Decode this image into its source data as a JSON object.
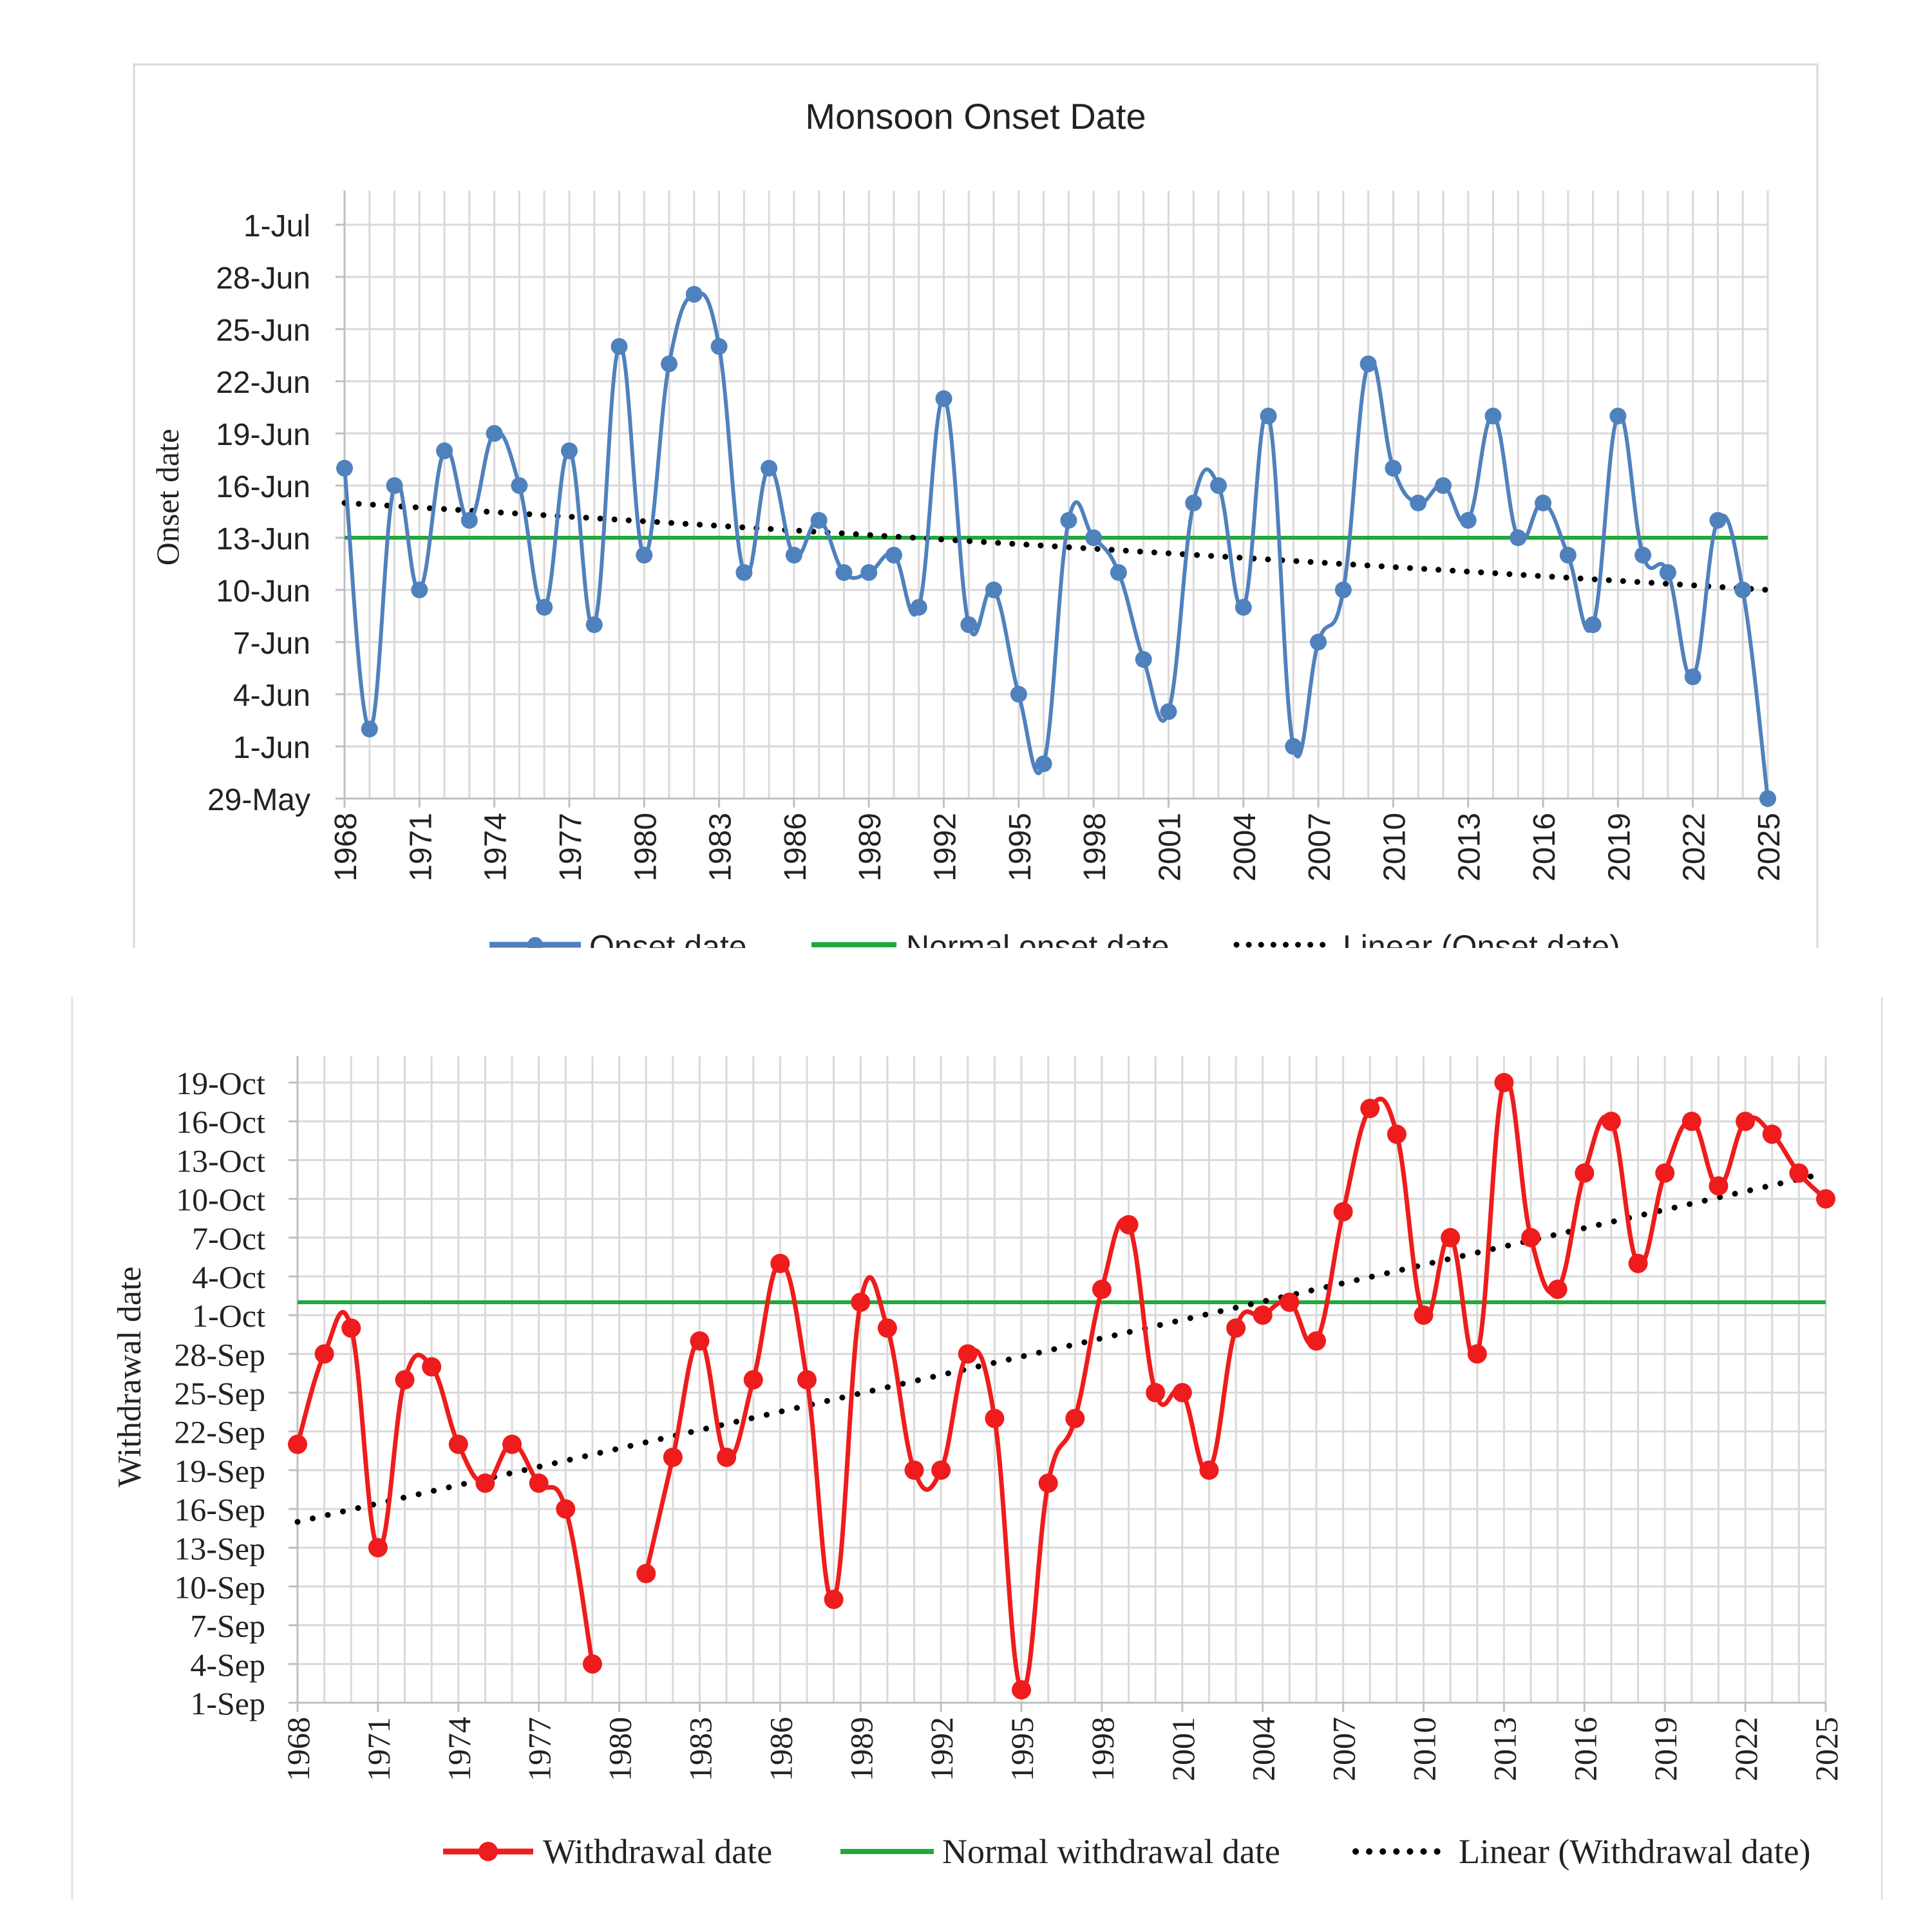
{
  "chart_data": [
    {
      "type": "line",
      "title": "Monsoon Onset Date",
      "xlabel": "",
      "ylabel": "Onset date",
      "x_ticks": [
        "1968",
        "1971",
        "1974",
        "1977",
        "1980",
        "1983",
        "1986",
        "1989",
        "1992",
        "1995",
        "1998",
        "2001",
        "2004",
        "2007",
        "2010",
        "2013",
        "2016",
        "2019",
        "2022",
        "2025"
      ],
      "y_ticks": [
        "29-May",
        "1-Jun",
        "4-Jun",
        "7-Jun",
        "10-Jun",
        "13-Jun",
        "16-Jun",
        "19-Jun",
        "22-Jun",
        "25-Jun",
        "28-Jun",
        "1-Jul"
      ],
      "xlim": [
        1968,
        2025
      ],
      "ylim": [
        "2025-05-29",
        "2025-07-01"
      ],
      "legend_position": "bottom",
      "grid": true,
      "colors": {
        "series": "#4f81bd",
        "normal": "#22a83a",
        "trend": "#000000"
      },
      "series": [
        {
          "name": "Onset date",
          "x": [
            1968,
            1969,
            1970,
            1971,
            1972,
            1973,
            1974,
            1975,
            1976,
            1977,
            1978,
            1979,
            1980,
            1981,
            1982,
            1983,
            1984,
            1985,
            1986,
            1987,
            1988,
            1989,
            1990,
            1991,
            1992,
            1993,
            1994,
            1995,
            1996,
            1997,
            1998,
            1999,
            2000,
            2001,
            2002,
            2003,
            2004,
            2005,
            2006,
            2007,
            2008,
            2009,
            2010,
            2011,
            2012,
            2013,
            2014,
            2015,
            2016,
            2017,
            2018,
            2019,
            2020,
            2021,
            2022,
            2023,
            2024,
            2025
          ],
          "y": [
            "2025-06-17",
            "2025-06-02",
            "2025-06-16",
            "2025-06-10",
            "2025-06-18",
            "2025-06-14",
            "2025-06-19",
            "2025-06-16",
            "2025-06-09",
            "2025-06-18",
            "2025-06-08",
            "2025-06-24",
            "2025-06-12",
            "2025-06-23",
            "2025-06-27",
            "2025-06-24",
            "2025-06-11",
            "2025-06-17",
            "2025-06-12",
            "2025-06-14",
            "2025-06-11",
            "2025-06-11",
            "2025-06-12",
            "2025-06-09",
            "2025-06-21",
            "2025-06-08",
            "2025-06-10",
            "2025-06-04",
            "2025-05-31",
            "2025-06-14",
            "2025-06-13",
            "2025-06-11",
            "2025-06-06",
            "2025-06-03",
            "2025-06-15",
            "2025-06-16",
            "2025-06-09",
            "2025-06-20",
            "2025-06-01",
            "2025-06-07",
            "2025-06-10",
            "2025-06-23",
            "2025-06-17",
            "2025-06-15",
            "2025-06-16",
            "2025-06-14",
            "2025-06-20",
            "2025-06-13",
            "2025-06-15",
            "2025-06-12",
            "2025-06-08",
            "2025-06-20",
            "2025-06-12",
            "2025-06-11",
            "2025-06-05",
            "2025-06-14",
            "2025-06-10",
            "2025-05-29"
          ]
        },
        {
          "name": "Normal onset date",
          "y": "2025-06-13"
        },
        {
          "name": "Linear (Onset date)",
          "x": [
            1968,
            2025
          ],
          "y": [
            "2025-06-15",
            "2025-06-10"
          ]
        }
      ]
    },
    {
      "type": "line",
      "title": "",
      "xlabel": "",
      "ylabel": "Withdrawal date",
      "x_ticks": [
        "1968",
        "1971",
        "1974",
        "1977",
        "1980",
        "1983",
        "1986",
        "1989",
        "1992",
        "1995",
        "1998",
        "2001",
        "2004",
        "2007",
        "2010",
        "2013",
        "2016",
        "2019",
        "2022",
        "2025"
      ],
      "y_ticks": [
        "1-Sep",
        "4-Sep",
        "7-Sep",
        "10-Sep",
        "13-Sep",
        "16-Sep",
        "19-Sep",
        "22-Sep",
        "25-Sep",
        "28-Sep",
        "1-Oct",
        "4-Oct",
        "7-Oct",
        "10-Oct",
        "13-Oct",
        "16-Oct",
        "19-Oct"
      ],
      "xlim": [
        1968,
        2025
      ],
      "ylim": [
        "2025-09-01",
        "2025-10-20"
      ],
      "legend_position": "bottom",
      "grid": true,
      "colors": {
        "series": "#ee1c1c",
        "normal": "#22a83a",
        "trend": "#000000"
      },
      "series": [
        {
          "name": "Withdrawal date",
          "x": [
            1968,
            1969,
            1970,
            1971,
            1972,
            1973,
            1974,
            1975,
            1976,
            1977,
            1978,
            1979,
            1980,
            1981,
            1982,
            1983,
            1984,
            1985,
            1986,
            1987,
            1988,
            1989,
            1990,
            1991,
            1992,
            1993,
            1994,
            1995,
            1996,
            1997,
            1998,
            1999,
            2000,
            2001,
            2002,
            2003,
            2004,
            2005,
            2006,
            2007,
            2008,
            2009,
            2010,
            2011,
            2012,
            2013,
            2014,
            2015,
            2016,
            2017,
            2018,
            2019,
            2020,
            2021,
            2022,
            2023,
            2024,
            2025
          ],
          "y": [
            "2025-09-21",
            "2025-09-28",
            "2025-09-30",
            "2025-09-13",
            "2025-09-26",
            "2025-09-27",
            "2025-09-21",
            "2025-09-18",
            "2025-09-21",
            "2025-09-18",
            "2025-09-16",
            "2025-09-04",
            null,
            "2025-09-11",
            "2025-09-20",
            "2025-09-29",
            "2025-09-20",
            "2025-09-26",
            "2025-10-05",
            "2025-09-26",
            "2025-09-09",
            "2025-10-02",
            "2025-09-30",
            "2025-09-19",
            "2025-09-19",
            "2025-09-28",
            "2025-09-23",
            "2025-09-02",
            "2025-09-18",
            "2025-09-23",
            "2025-10-03",
            "2025-10-08",
            "2025-09-25",
            "2025-09-25",
            "2025-09-19",
            "2025-09-30",
            "2025-10-01",
            "2025-10-02",
            "2025-09-29",
            "2025-10-09",
            "2025-10-17",
            "2025-10-15",
            "2025-10-01",
            "2025-10-07",
            "2025-09-28",
            "2025-10-19",
            "2025-10-07",
            "2025-10-03",
            "2025-10-12",
            "2025-10-16",
            "2025-10-05",
            "2025-10-12",
            "2025-10-16",
            "2025-10-11",
            "2025-10-16",
            "2025-10-15",
            "2025-10-12",
            "2025-10-10"
          ]
        },
        {
          "name": "Normal withdrawal date",
          "y": "2025-10-02"
        },
        {
          "name": "Linear (Withdrawal date)",
          "x": [
            1968,
            2025
          ],
          "y": [
            "2025-09-15",
            "2025-10-12"
          ]
        }
      ]
    }
  ]
}
